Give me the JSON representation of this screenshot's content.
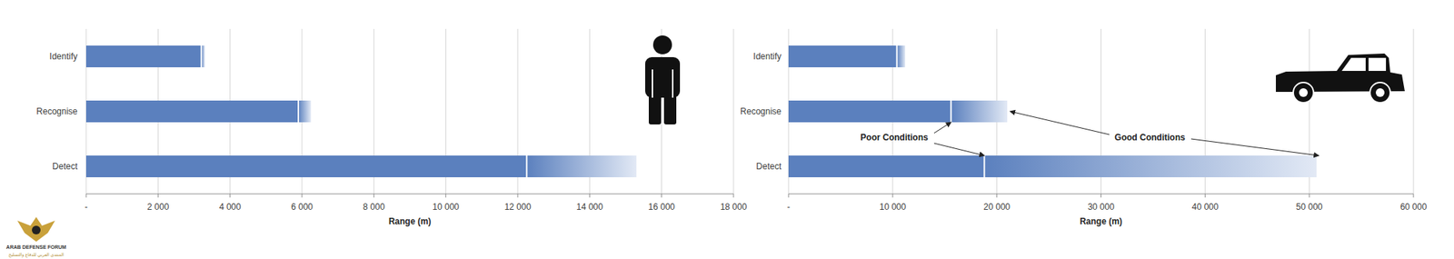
{
  "chart_data": [
    {
      "type": "bar",
      "orientation": "horizontal",
      "categories": [
        "Identify",
        "Recognise",
        "Detect"
      ],
      "series": [
        {
          "color": "#5b80be",
          "values": [
            3200,
            5900,
            12250
          ]
        },
        {
          "color": "#e2e9f5",
          "values": [
            3300,
            6250,
            15300
          ]
        }
      ],
      "xlabel": "Range (m)",
      "xlim": [
        0,
        18000
      ],
      "xticks": [
        {
          "value": 0,
          "label": "-"
        },
        {
          "value": 2000,
          "label": "2 000"
        },
        {
          "value": 4000,
          "label": "4 000"
        },
        {
          "value": 6000,
          "label": "6 000"
        },
        {
          "value": 8000,
          "label": "8 000"
        },
        {
          "value": 10000,
          "label": "10 000"
        },
        {
          "value": 12000,
          "label": "12 000"
        },
        {
          "value": 14000,
          "label": "14 000"
        },
        {
          "value": 16000,
          "label": "16 000"
        },
        {
          "value": 18000,
          "label": "18 000"
        }
      ],
      "grid": true
    },
    {
      "type": "bar",
      "orientation": "horizontal",
      "categories": [
        "Identify",
        "Recognise",
        "Detect"
      ],
      "series": [
        {
          "name": "Poor Conditions",
          "color": "#5b80be",
          "values": [
            10400,
            15600,
            18800
          ]
        },
        {
          "name": "Good Conditions",
          "color": "#e2e9f5",
          "values": [
            11200,
            21000,
            50700
          ]
        }
      ],
      "xlabel": "Range (m)",
      "xlim": [
        0,
        60000
      ],
      "xticks": [
        {
          "value": 0,
          "label": "-"
        },
        {
          "value": 10000,
          "label": "10 000"
        },
        {
          "value": 20000,
          "label": "20 000"
        },
        {
          "value": 30000,
          "label": "30 000"
        },
        {
          "value": 40000,
          "label": "40 000"
        },
        {
          "value": 50000,
          "label": "50 000"
        },
        {
          "value": 60000,
          "label": "60 000"
        }
      ],
      "grid": true
    }
  ],
  "watermark": {
    "title": "ARAB DEFENSE FORUM",
    "subtitle": "المنتدى العربي للدفاع والتسليح"
  }
}
